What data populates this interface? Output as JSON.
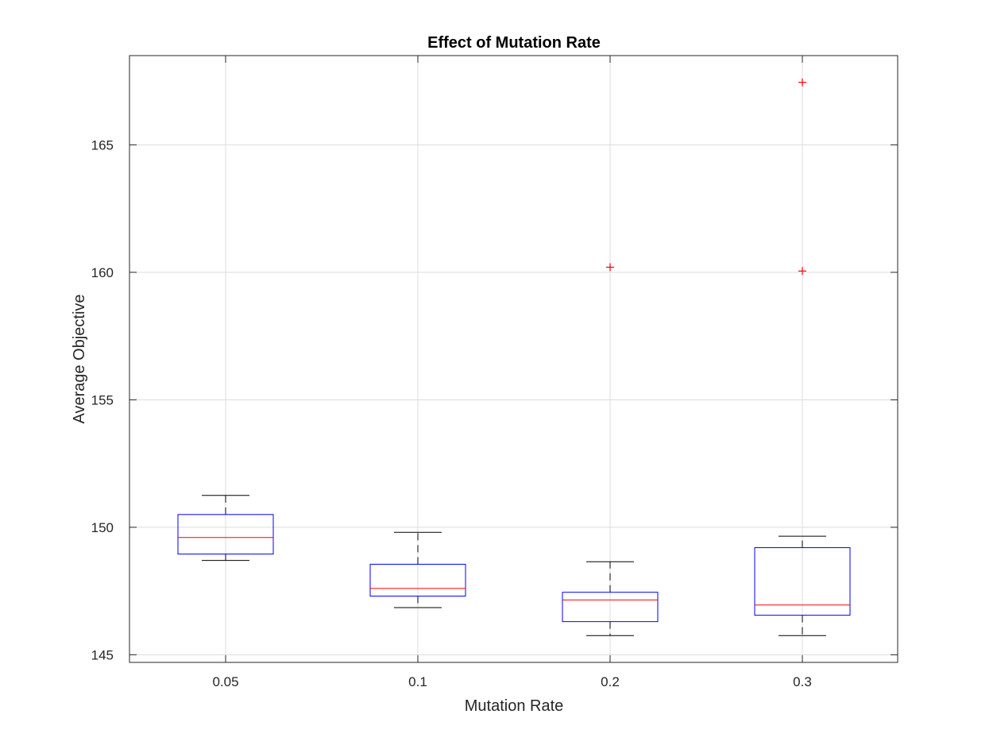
{
  "chart_data": {
    "type": "box",
    "title": "Effect of Mutation Rate",
    "xlabel": "Mutation Rate",
    "ylabel": "Average Objective",
    "categories": [
      "0.05",
      "0.1",
      "0.2",
      "0.3"
    ],
    "ylim": [
      144.7,
      168.5
    ],
    "yticks": [
      145,
      150,
      155,
      160,
      165
    ],
    "grid": true,
    "colors": {
      "box": "#0000ff",
      "median": "#ff0000",
      "whisker": "#000000",
      "outlier": "#ff0000",
      "grid": "#dcdcdc"
    },
    "boxes": [
      {
        "category": "0.05",
        "whisker_low": 148.7,
        "q1": 148.95,
        "median": 149.6,
        "q3": 150.5,
        "whisker_high": 151.25,
        "outliers": []
      },
      {
        "category": "0.1",
        "whisker_low": 146.85,
        "q1": 147.3,
        "median": 147.6,
        "q3": 148.55,
        "whisker_high": 149.8,
        "outliers": []
      },
      {
        "category": "0.2",
        "whisker_low": 145.75,
        "q1": 146.3,
        "median": 147.15,
        "q3": 147.45,
        "whisker_high": 148.65,
        "outliers": [
          160.2
        ]
      },
      {
        "category": "0.3",
        "whisker_low": 145.75,
        "q1": 146.55,
        "median": 146.95,
        "q3": 149.2,
        "whisker_high": 149.65,
        "outliers": [
          160.05,
          167.45
        ]
      }
    ]
  }
}
